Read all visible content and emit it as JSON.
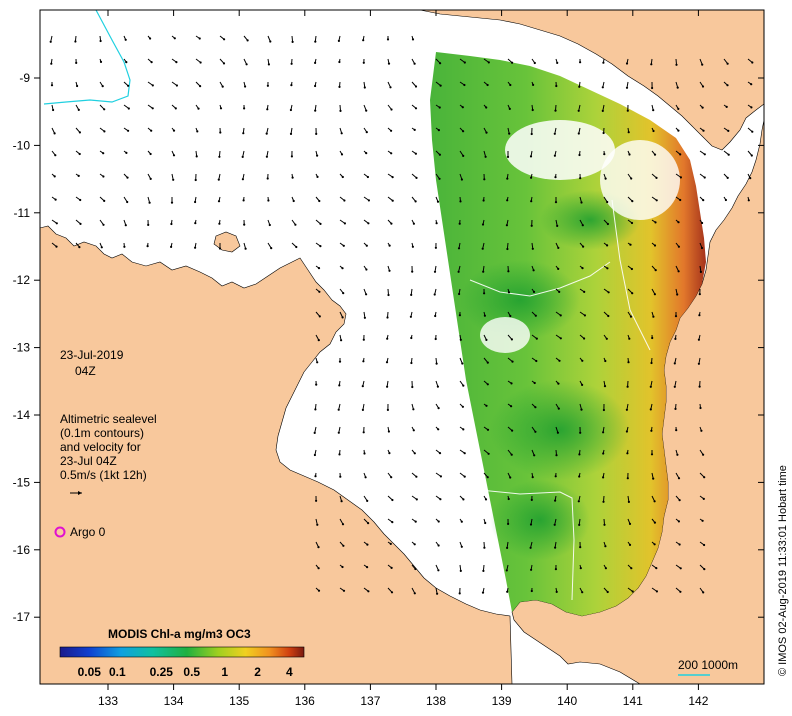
{
  "map": {
    "lon_ticks": [
      "133",
      "134",
      "135",
      "136",
      "137",
      "138",
      "139",
      "140",
      "141",
      "142"
    ],
    "lat_ticks": [
      "-9",
      "-10",
      "-11",
      "-12",
      "-13",
      "-14",
      "-15",
      "-16",
      "-17"
    ],
    "date_line1": "23-Jul-2019",
    "date_line2": "04Z",
    "legend_lines": [
      "Altimetric sealevel",
      "(0.1m contours)",
      "and velocity for",
      "23-Jul 04Z",
      "0.5m/s (1kt 12h)"
    ],
    "argo_label": "Argo 0",
    "colorbar_title": "MODIS Chl-a mg/m3 OC3",
    "colorbar_ticks": [
      "0.05",
      "0.1",
      "0.25",
      "0.5",
      "1",
      "2",
      "4"
    ],
    "scale_label": "200  1000m",
    "credit": "© IMOS 02-Aug-2019 11:33:01 Hobart time",
    "colors": {
      "land": "#f8c89c",
      "argo": "#e010d0",
      "contour": "#20d0e0",
      "chl_low": "#10a030",
      "chl_mid": "#e0d020",
      "chl_high": "#a02010"
    }
  }
}
